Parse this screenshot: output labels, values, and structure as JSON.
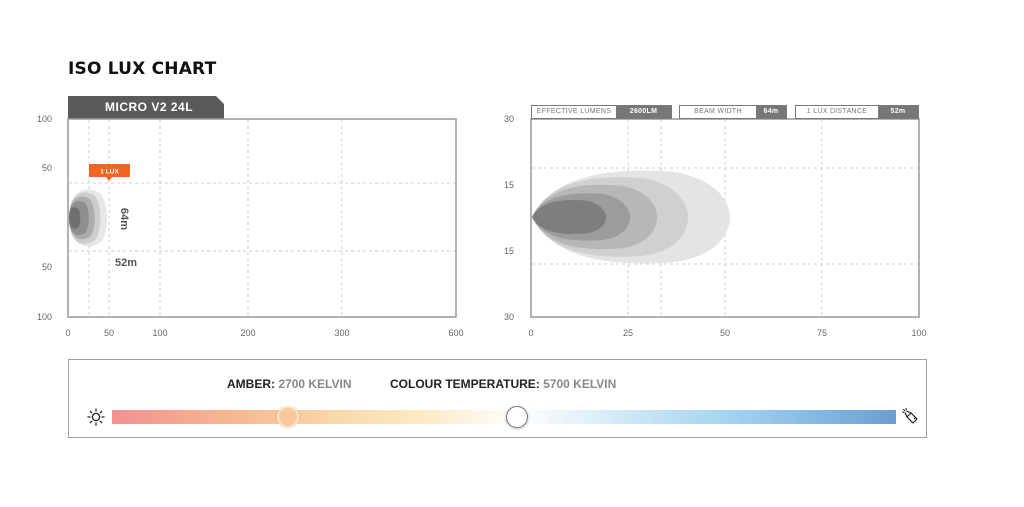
{
  "page": {
    "title": "ISO LUX CHART"
  },
  "model": {
    "name": "MICRO V2 24L"
  },
  "stats": [
    {
      "label": "EFFECTIVE LUMENS",
      "value": "2600LM"
    },
    {
      "label": "BEAM WIDTH",
      "value": "64m"
    },
    {
      "label": "1 LUX DISTANCE",
      "value": "52m"
    }
  ],
  "chart_data": [
    {
      "type": "heatmap",
      "title": "",
      "x_ticks": [
        "0",
        "50",
        "100",
        "200",
        "300",
        "600"
      ],
      "y_ticks": [
        "100",
        "50",
        "50",
        "100"
      ],
      "annotations": {
        "lux_callout": "1 LUX",
        "width_label": "64m",
        "distance_label": "52m"
      },
      "distance_1lux_m": 52,
      "beam_width_m": 64,
      "grid": true,
      "colors": [
        "#e6e6e6",
        "#cbcbcb",
        "#aaaaaa",
        "#8c8c8c",
        "#6e6e6e"
      ]
    },
    {
      "type": "heatmap",
      "title": "",
      "x_ticks": [
        "0",
        "25",
        "50",
        "75",
        "100"
      ],
      "y_ticks": [
        "30",
        "15",
        "15",
        "30"
      ],
      "xlim": [
        0,
        100
      ],
      "ylim": [
        -30,
        30
      ],
      "grid": true,
      "colors": [
        "#e3e3e3",
        "#cfcfcf",
        "#b5b5b5",
        "#9a9a9a",
        "#7c7c7c"
      ]
    }
  ],
  "colour": {
    "amber_label": "AMBER:",
    "amber_value": "2700 KELVIN",
    "temp_label": "COLOUR TEMPERATURE:",
    "temp_value": "5700 KELVIN",
    "amber_level": 0.225,
    "temp_level": 0.517,
    "left_icon": "sun-icon",
    "right_icon": "flashlight-icon"
  }
}
